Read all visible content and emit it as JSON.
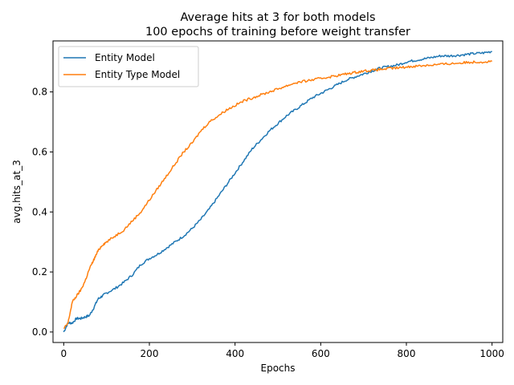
{
  "chart_data": {
    "type": "line",
    "title": "Average hits at 3 for both models",
    "subtitle": "100 epochs of training before weight transfer",
    "xlabel": "Epochs",
    "ylabel": "avg.hits_at_3",
    "xlim": [
      -25,
      1025
    ],
    "ylim": [
      -0.035,
      0.97
    ],
    "xticks": [
      0,
      200,
      400,
      600,
      800,
      1000
    ],
    "yticks": [
      0.0,
      0.2,
      0.4,
      0.6,
      0.8
    ],
    "xtick_labels": [
      "0",
      "200",
      "400",
      "600",
      "800",
      "1000"
    ],
    "ytick_labels": [
      "0.0",
      "0.2",
      "0.4",
      "0.6",
      "0.8"
    ],
    "grid": false,
    "legend_position": "top-left",
    "series": [
      {
        "name": "Entity Model",
        "color": "#1f77b4",
        "x": [
          0,
          10,
          20,
          30,
          40,
          50,
          60,
          70,
          80,
          90,
          100,
          120,
          140,
          160,
          180,
          200,
          220,
          240,
          260,
          280,
          300,
          320,
          340,
          360,
          380,
          400,
          420,
          440,
          460,
          480,
          500,
          520,
          540,
          560,
          580,
          600,
          620,
          640,
          660,
          680,
          700,
          720,
          740,
          760,
          780,
          800,
          820,
          840,
          860,
          880,
          900,
          920,
          940,
          960,
          980,
          1000
        ],
        "values": [
          0.0,
          0.03,
          0.03,
          0.045,
          0.045,
          0.05,
          0.055,
          0.08,
          0.11,
          0.12,
          0.13,
          0.145,
          0.165,
          0.19,
          0.225,
          0.245,
          0.26,
          0.28,
          0.3,
          0.32,
          0.345,
          0.375,
          0.41,
          0.45,
          0.49,
          0.53,
          0.57,
          0.61,
          0.64,
          0.67,
          0.695,
          0.72,
          0.74,
          0.76,
          0.78,
          0.795,
          0.81,
          0.825,
          0.84,
          0.85,
          0.86,
          0.87,
          0.88,
          0.885,
          0.89,
          0.9,
          0.905,
          0.91,
          0.915,
          0.92,
          0.92,
          0.922,
          0.925,
          0.928,
          0.93,
          0.935
        ]
      },
      {
        "name": "Entity Type Model",
        "color": "#ff7f0e",
        "x": [
          0,
          10,
          20,
          30,
          40,
          50,
          60,
          70,
          80,
          90,
          100,
          120,
          140,
          160,
          180,
          200,
          220,
          240,
          260,
          280,
          300,
          320,
          340,
          360,
          380,
          400,
          420,
          440,
          460,
          480,
          500,
          520,
          540,
          560,
          580,
          600,
          620,
          640,
          660,
          680,
          700,
          720,
          740,
          760,
          780,
          800,
          820,
          840,
          860,
          880,
          900,
          920,
          940,
          960,
          980,
          1000
        ],
        "values": [
          0.01,
          0.03,
          0.1,
          0.12,
          0.14,
          0.17,
          0.21,
          0.24,
          0.27,
          0.29,
          0.3,
          0.32,
          0.34,
          0.37,
          0.4,
          0.44,
          0.48,
          0.52,
          0.56,
          0.6,
          0.63,
          0.67,
          0.7,
          0.72,
          0.74,
          0.755,
          0.77,
          0.78,
          0.79,
          0.8,
          0.81,
          0.82,
          0.83,
          0.835,
          0.84,
          0.845,
          0.85,
          0.855,
          0.86,
          0.865,
          0.87,
          0.872,
          0.875,
          0.878,
          0.88,
          0.883,
          0.886,
          0.888,
          0.89,
          0.892,
          0.894,
          0.896,
          0.898,
          0.9,
          0.9,
          0.902
        ]
      }
    ]
  }
}
